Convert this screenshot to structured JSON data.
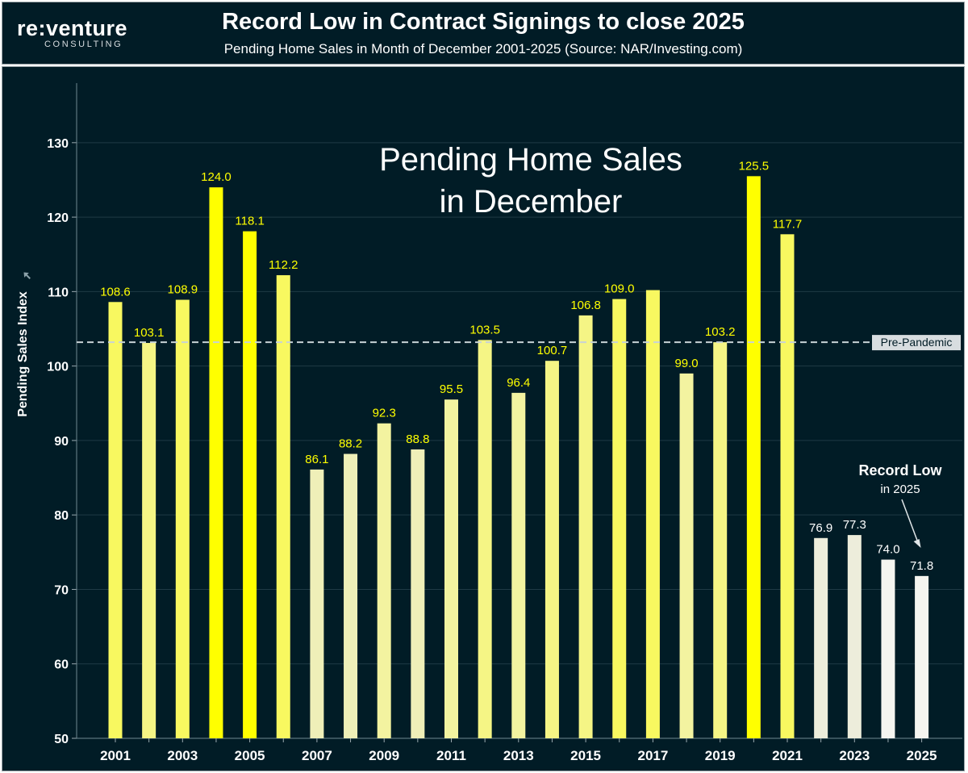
{
  "logo": {
    "main": "re:venture",
    "sub": "CONSULTING"
  },
  "header": {
    "title": "Record Low in Contract Signings to close 2025",
    "subtitle": "Pending Home Sales in Month of December 2001-2025 (Source: NAR/Investing.com)"
  },
  "chart_data": {
    "type": "bar",
    "title": "Record Low in Contract Signings to close 2025",
    "subtitle": "Pending Home Sales in Month of December 2001-2025 (Source: NAR/Investing.com)",
    "inner_title": [
      "Pending Home Sales",
      "in December"
    ],
    "xlabel": "",
    "ylabel": "Pending Sales Index",
    "ylim": [
      50,
      138
    ],
    "yticks": [
      50,
      60,
      70,
      80,
      90,
      100,
      110,
      120,
      130
    ],
    "grid": true,
    "categories": [
      "2001",
      "2002",
      "2003",
      "2004",
      "2005",
      "2006",
      "2007",
      "2008",
      "2009",
      "2010",
      "2011",
      "2012",
      "2013",
      "2014",
      "2015",
      "2016",
      "2017",
      "2018",
      "2019",
      "2020",
      "2021",
      "2022",
      "2023",
      "2024",
      "2025"
    ],
    "x_tick_labels": [
      "2001",
      "2003",
      "2005",
      "2007",
      "2009",
      "2011",
      "2013",
      "2015",
      "2017",
      "2019",
      "2021",
      "2023",
      "2025"
    ],
    "values": [
      108.6,
      103.1,
      108.9,
      124.0,
      118.1,
      112.2,
      86.1,
      88.2,
      92.3,
      88.8,
      95.5,
      103.5,
      96.4,
      100.7,
      106.8,
      109.0,
      110.2,
      99.0,
      103.2,
      125.5,
      117.7,
      76.9,
      77.3,
      74.0,
      71.8
    ],
    "data_labels": [
      "108.6",
      "103.1",
      "108.9",
      "124.0",
      "118.1",
      "112.2",
      "86.1",
      "88.2",
      "92.3",
      "88.8",
      "95.5",
      "103.5",
      "96.4",
      "100.7",
      "106.8",
      "109.0",
      "",
      "99.0",
      "103.2",
      "125.5",
      "117.7",
      "76.9",
      "77.3",
      "74.0",
      "71.8"
    ],
    "reference_line": {
      "value": 103.2,
      "label": "Pre-Pandemic"
    },
    "annotation": {
      "title": "Record Low",
      "text": "in 2025",
      "target": "2025"
    },
    "colors": {
      "low": "#f5f5f0",
      "mid": "#f2f2a8",
      "high": "#ffff00",
      "background": "#011c26"
    }
  }
}
